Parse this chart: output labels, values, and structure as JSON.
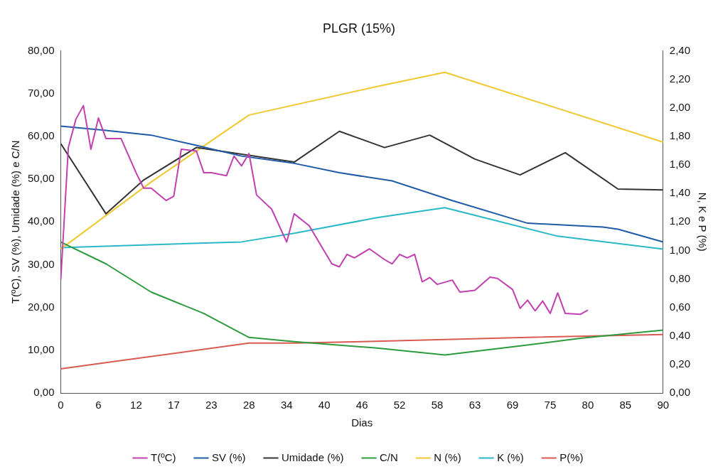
{
  "chart_data": {
    "type": "line",
    "title": "PLGR (15%)",
    "xlabel": "Dias",
    "ylabel": "T(ºC), SV (%), Umidade (%) e C/N",
    "y2label": "N, K e P (%)",
    "categories": [
      "0",
      null,
      null,
      null,
      null,
      "6",
      null,
      null,
      null,
      null,
      "12",
      null,
      null,
      null,
      null,
      "17",
      null,
      null,
      null,
      null,
      "23",
      null,
      null,
      null,
      null,
      "28",
      null,
      null,
      null,
      null,
      "34",
      null,
      null,
      null,
      null,
      "40",
      null,
      null,
      null,
      null,
      "46",
      null,
      null,
      null,
      null,
      "52",
      null,
      null,
      null,
      null,
      "58",
      null,
      null,
      null,
      null,
      "63",
      null,
      null,
      null,
      null,
      "69",
      null,
      null,
      null,
      null,
      "75",
      null,
      null,
      null,
      null,
      "80",
      null,
      null,
      null,
      null,
      "85",
      null,
      null,
      null,
      null,
      "90"
    ],
    "series": [
      {
        "name": "T(ºC)",
        "color": "#c040b0",
        "values": [
          26.6,
          57.4,
          64,
          67.2,
          57,
          64.3,
          59.5,
          null,
          59.5,
          null,
          51.5,
          47.9,
          47.9,
          null,
          45,
          46,
          57,
          null,
          56.6,
          51.5,
          51.5,
          null,
          50.8,
          55.4,
          53.1,
          56,
          46.3,
          null,
          43,
          null,
          35.3,
          41.9,
          null,
          39.1,
          null,
          null,
          30.2,
          29.5,
          32.4,
          31.6,
          null,
          33.7,
          null,
          31.2,
          30.2,
          32.4,
          31.6,
          32.4,
          26,
          27,
          25.4,
          null,
          26.4,
          23.6,
          null,
          24,
          null,
          27.1,
          26.8,
          null,
          24.2,
          19.8,
          21.7,
          19.2,
          21.5,
          18.6,
          23.4,
          18.6,
          null,
          18.4,
          19.4,
          null,
          null,
          null,
          null,
          null,
          null,
          null,
          null,
          null,
          null
        ]
      },
      {
        "name": "SV (%)",
        "color": "#1f5aa6",
        "values": [
          62.4,
          null,
          null,
          null,
          null,
          null,
          61.4,
          null,
          null,
          null,
          null,
          null,
          60.3,
          null,
          null,
          null,
          null,
          null,
          57.9,
          null,
          null,
          null,
          null,
          null,
          55.4,
          null,
          null,
          null,
          null,
          null,
          null,
          53.7,
          null,
          null,
          null,
          null,
          null,
          51.5,
          null,
          null,
          null,
          null,
          null,
          null,
          49.6,
          null,
          null,
          null,
          null,
          null,
          null,
          null,
          45,
          null,
          null,
          null,
          null,
          null,
          null,
          null,
          null,
          null,
          39.7,
          null,
          null,
          null,
          null,
          null,
          null,
          null,
          null,
          null,
          38.8,
          null,
          38.3,
          null,
          null,
          null,
          null,
          null,
          35.3
        ]
      },
      {
        "name": "Umidade (%)",
        "color": "#333333",
        "values": [
          58.3,
          null,
          null,
          null,
          null,
          null,
          41.9,
          null,
          null,
          null,
          null,
          49.8,
          null,
          null,
          null,
          null,
          null,
          null,
          57.4,
          null,
          null,
          null,
          null,
          null,
          null,
          null,
          null,
          null,
          null,
          null,
          null,
          54,
          null,
          null,
          null,
          null,
          null,
          61.2,
          null,
          null,
          null,
          null,
          null,
          57.4,
          null,
          null,
          null,
          null,
          null,
          60.3,
          null,
          null,
          null,
          null,
          null,
          54.7,
          null,
          null,
          null,
          null,
          null,
          51,
          null,
          null,
          null,
          null,
          null,
          56.2,
          null,
          null,
          null,
          null,
          null,
          null,
          47.7,
          null,
          null,
          null,
          null,
          null,
          47.5
        ]
      },
      {
        "name": "C/N",
        "color": "#2e9a3e",
        "values": [
          35.3,
          null,
          null,
          null,
          null,
          null,
          30.2,
          null,
          null,
          null,
          null,
          null,
          23.6,
          null,
          null,
          null,
          null,
          null,
          null,
          18.6,
          null,
          null,
          null,
          null,
          null,
          13,
          null,
          null,
          null,
          null,
          null,
          12,
          null,
          null,
          null,
          null,
          null,
          null,
          null,
          null,
          null,
          null,
          10.5,
          null,
          null,
          null,
          null,
          null,
          null,
          null,
          null,
          8.9,
          null,
          null,
          null,
          null,
          null,
          null,
          null,
          null,
          null,
          11,
          null,
          null,
          null,
          null,
          null,
          null,
          null,
          12.8,
          null,
          null,
          null,
          null,
          null,
          null,
          null,
          null,
          null,
          null,
          14.7
        ]
      },
      {
        "name": "N (%)",
        "color": "#f0c830",
        "axis": "y2",
        "values": [
          1.01,
          null,
          null,
          null,
          null,
          null,
          null,
          null,
          null,
          null,
          null,
          null,
          1.48,
          null,
          null,
          null,
          null,
          null,
          null,
          null,
          null,
          null,
          null,
          null,
          null,
          1.95,
          null,
          null,
          null,
          null,
          null,
          null,
          null,
          null,
          null,
          null,
          null,
          null,
          null,
          null,
          null,
          null,
          2.15,
          null,
          null,
          null,
          null,
          null,
          null,
          null,
          null,
          2.25,
          null,
          null,
          null,
          null,
          null,
          null,
          null,
          null,
          null,
          null,
          null,
          null,
          null,
          null,
          null,
          null,
          null,
          null,
          null,
          null,
          null,
          null,
          null,
          null,
          null,
          null,
          null,
          null,
          1.76
        ]
      },
      {
        "name": "K (%)",
        "color": "#28b8c8",
        "axis": "y2",
        "values": [
          1.02,
          null,
          null,
          null,
          null,
          null,
          null,
          null,
          null,
          null,
          null,
          null,
          null,
          null,
          null,
          null,
          null,
          null,
          null,
          null,
          null,
          null,
          null,
          null,
          1.06,
          null,
          null,
          null,
          null,
          null,
          null,
          1.12,
          null,
          null,
          null,
          null,
          null,
          null,
          null,
          null,
          null,
          null,
          1.23,
          null,
          null,
          null,
          null,
          null,
          null,
          null,
          null,
          1.3,
          null,
          null,
          null,
          null,
          null,
          null,
          null,
          null,
          null,
          null,
          null,
          null,
          null,
          null,
          1.1,
          null,
          null,
          null,
          null,
          null,
          null,
          null,
          null,
          null,
          null,
          null,
          null,
          null,
          1.01
        ]
      },
      {
        "name": "P(%)",
        "color": "#d85a50",
        "axis": "y2",
        "values": [
          0.17,
          null,
          null,
          null,
          null,
          null,
          null,
          null,
          null,
          null,
          null,
          null,
          null,
          null,
          null,
          null,
          null,
          null,
          null,
          null,
          null,
          null,
          null,
          null,
          null,
          0.35,
          null,
          null,
          null,
          null,
          null,
          0.35,
          null,
          null,
          null,
          null,
          null,
          null,
          null,
          null,
          0.36,
          null,
          null,
          null,
          null,
          null,
          null,
          null,
          null,
          null,
          null,
          null,
          null,
          null,
          null,
          null,
          null,
          null,
          null,
          null,
          null,
          null,
          0.39,
          null,
          null,
          null,
          null,
          null,
          null,
          null,
          null,
          null,
          null,
          null,
          null,
          null,
          null,
          null,
          null,
          null,
          0.41
        ]
      }
    ],
    "ylim": [
      0,
      80
    ],
    "yticks": [
      {
        "value": 0,
        "label": "0,00"
      },
      {
        "value": 10,
        "label": "10,00"
      },
      {
        "value": 20,
        "label": "20,00"
      },
      {
        "value": 30,
        "label": "30,00"
      },
      {
        "value": 40,
        "label": "40,00"
      },
      {
        "value": 50,
        "label": "50,00"
      },
      {
        "value": 60,
        "label": "60,00"
      },
      {
        "value": 70,
        "label": "70,00"
      },
      {
        "value": 80,
        "label": "80,00"
      }
    ],
    "y2lim": [
      0,
      2.4
    ],
    "y2ticks": [
      {
        "value": 0,
        "label": "0,00"
      },
      {
        "value": 0.2,
        "label": "0,20"
      },
      {
        "value": 0.4,
        "label": "0,40"
      },
      {
        "value": 0.6,
        "label": "0,60"
      },
      {
        "value": 0.8,
        "label": "0,80"
      },
      {
        "value": 1,
        "label": "1,00"
      },
      {
        "value": 1.2,
        "label": "1,20"
      },
      {
        "value": 1.4,
        "label": "1,40"
      },
      {
        "value": 1.6,
        "label": "1,60"
      },
      {
        "value": 1.8,
        "label": "1,80"
      },
      {
        "value": 2,
        "label": "2,00"
      },
      {
        "value": 2.2,
        "label": "2,20"
      },
      {
        "value": 2.4,
        "label": "2,40"
      }
    ],
    "grid": false,
    "legend": "bottom",
    "marker": "none",
    "line_style": "solid"
  }
}
